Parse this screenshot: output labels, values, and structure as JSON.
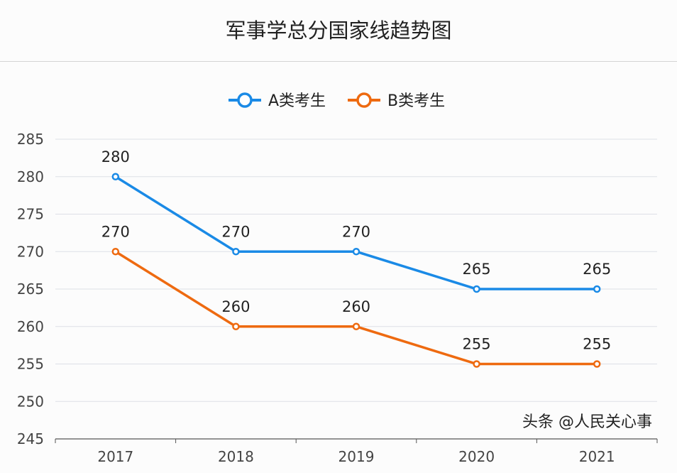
{
  "chart_data": {
    "type": "line",
    "title": "军事学总分国家线趋势图",
    "categories": [
      "2017",
      "2018",
      "2019",
      "2020",
      "2021"
    ],
    "series": [
      {
        "name": "A类考生",
        "values": [
          280,
          270,
          270,
          265,
          265
        ],
        "color": "#1a8ae6"
      },
      {
        "name": "B类考生",
        "values": [
          270,
          260,
          260,
          255,
          255
        ],
        "color": "#ee6a10"
      }
    ],
    "ylim": [
      245,
      285
    ],
    "yticks": [
      245,
      250,
      255,
      260,
      265,
      270,
      275,
      280,
      285
    ],
    "grid": true,
    "legend": "top-center",
    "data_labels": true
  },
  "watermark": "头条 @人民关心事"
}
